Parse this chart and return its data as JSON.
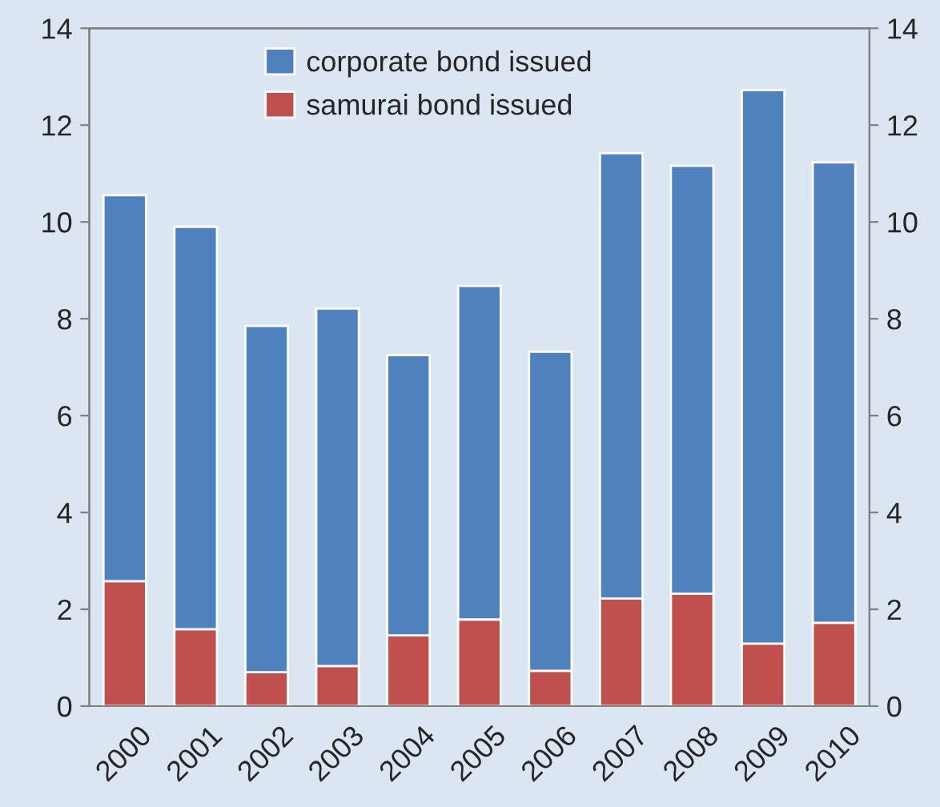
{
  "chart_data": {
    "type": "bar",
    "stacked": true,
    "categories": [
      "2000",
      "2001",
      "2002",
      "2003",
      "2004",
      "2005",
      "2006",
      "2007",
      "2008",
      "2009",
      "2010"
    ],
    "series": [
      {
        "name": "samurai bond issued",
        "color": "#c0504d",
        "values": [
          2.58,
          1.59,
          0.7,
          0.83,
          1.46,
          1.79,
          0.73,
          2.22,
          2.32,
          1.29,
          1.72
        ]
      },
      {
        "name": "corporate bond issued",
        "color": "#4f81bd",
        "values": [
          7.97,
          8.31,
          7.15,
          7.38,
          5.79,
          6.89,
          6.59,
          9.2,
          8.84,
          11.43,
          9.51
        ]
      }
    ],
    "ylim": [
      0,
      14
    ],
    "yticks": [
      0,
      2,
      4,
      6,
      8,
      10,
      12,
      14
    ],
    "y2lim": [
      0,
      14
    ],
    "y2ticks": [
      0,
      2,
      4,
      6,
      8,
      10,
      12,
      14
    ],
    "grid": false,
    "legend": "top left"
  }
}
